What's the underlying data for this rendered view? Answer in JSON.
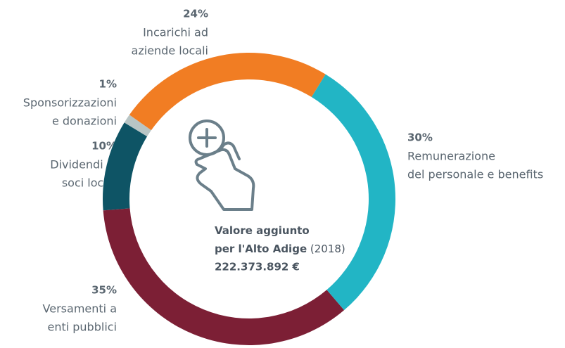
{
  "chart_data": {
    "type": "donut",
    "categories": [
      [
        "Remunerazione",
        "del personale e benefits"
      ],
      [
        "Versamenti a",
        "enti pubblici"
      ],
      [
        "Dividendi ai",
        "soci locali"
      ],
      [
        "Sponsorizzazioni",
        "e donazioni"
      ],
      [
        "Incarichi ad",
        "aziende locali"
      ]
    ],
    "values": [
      30,
      35,
      10,
      1,
      24
    ],
    "value_labels": [
      "30%",
      "35%",
      "10%",
      "1%",
      "24%"
    ],
    "colors": [
      "#22b5c5",
      "#7c1f35",
      "#0e5465",
      "#b8c5c5",
      "#f17d23"
    ],
    "center": {
      "line1": "Valore aggiunto",
      "line2": "per l'Alto Adige",
      "year": "(2018)",
      "total": "222.373.892 €"
    }
  }
}
